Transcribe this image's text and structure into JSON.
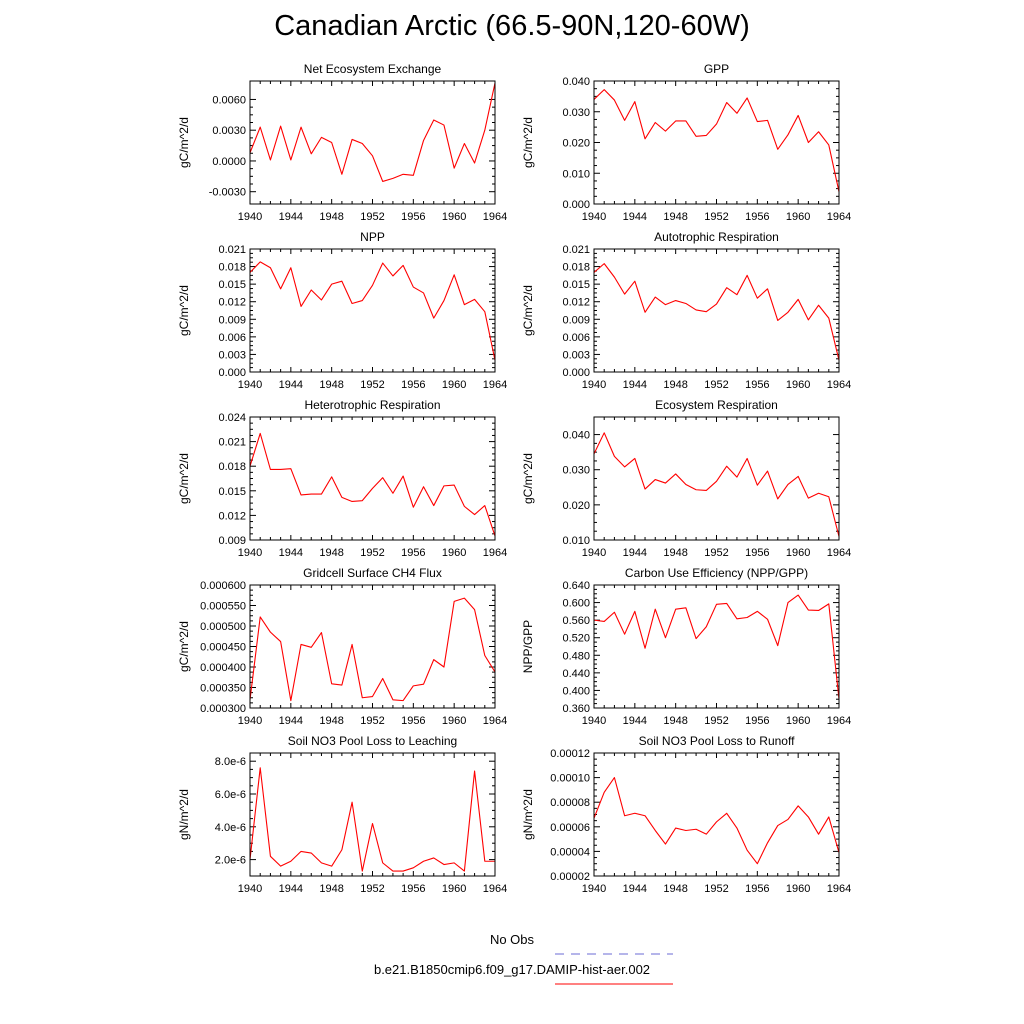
{
  "figure": {
    "title": "Canadian Arctic (66.5-90N,120-60W)",
    "line_color": "#ff0000",
    "obs_color": "#6b6bd6"
  },
  "legend": {
    "obs_label": "No Obs",
    "model_label": "b.e21.B1850cmip6.f09_g17.DAMIP-hist-aer.002"
  },
  "chart_data": [
    {
      "type": "line",
      "title": "Net Ecosystem Exchange",
      "ylabel": "gC/m^2/d",
      "xlim": [
        1940,
        1964
      ],
      "xticks": [
        "1940",
        "1944",
        "1948",
        "1952",
        "1956",
        "1960",
        "1964"
      ],
      "ylim": [
        -0.0042,
        0.0078
      ],
      "yticks": [
        "-0.0030",
        "0.0000",
        "0.0030",
        "0.0060"
      ],
      "x": [
        1940,
        1941,
        1942,
        1943,
        1944,
        1945,
        1946,
        1947,
        1948,
        1949,
        1950,
        1951,
        1952,
        1953,
        1954,
        1955,
        1956,
        1957,
        1958,
        1959,
        1960,
        1961,
        1962,
        1963,
        1964
      ],
      "series": [
        {
          "values": [
            0.0008,
            0.0033,
            0.0001,
            0.0034,
            0.0001,
            0.0033,
            0.0007,
            0.0023,
            0.0018,
            -0.0013,
            0.0021,
            0.0017,
            0.0005,
            -0.002,
            -0.0017,
            -0.0013,
            -0.0014,
            0.002,
            0.004,
            0.0035,
            -0.0007,
            0.0017,
            -0.0002,
            0.003,
            0.0076
          ]
        }
      ]
    },
    {
      "type": "line",
      "title": "GPP",
      "ylabel": "gC/m^2/d",
      "xlim": [
        1940,
        1964
      ],
      "xticks": [
        "1940",
        "1944",
        "1948",
        "1952",
        "1956",
        "1960",
        "1964"
      ],
      "ylim": [
        0.0,
        0.04
      ],
      "yticks": [
        "0.000",
        "0.010",
        "0.020",
        "0.030",
        "0.040"
      ],
      "x": [
        1940,
        1941,
        1942,
        1943,
        1944,
        1945,
        1946,
        1947,
        1948,
        1949,
        1950,
        1951,
        1952,
        1953,
        1954,
        1955,
        1956,
        1957,
        1958,
        1959,
        1960,
        1961,
        1962,
        1963,
        1964
      ],
      "series": [
        {
          "values": [
            0.034,
            0.0372,
            0.0338,
            0.0272,
            0.0333,
            0.0212,
            0.0265,
            0.0237,
            0.027,
            0.027,
            0.022,
            0.0223,
            0.026,
            0.033,
            0.0295,
            0.0345,
            0.0268,
            0.0272,
            0.0178,
            0.0225,
            0.0288,
            0.02,
            0.0235,
            0.0192,
            0.004
          ]
        }
      ]
    },
    {
      "type": "line",
      "title": "NPP",
      "ylabel": "gC/m^2/d",
      "xlim": [
        1940,
        1964
      ],
      "xticks": [
        "1940",
        "1944",
        "1948",
        "1952",
        "1956",
        "1960",
        "1964"
      ],
      "ylim": [
        0.0,
        0.021
      ],
      "yticks": [
        "0.000",
        "0.003",
        "0.006",
        "0.009",
        "0.012",
        "0.015",
        "0.018",
        "0.021"
      ],
      "x": [
        1940,
        1941,
        1942,
        1943,
        1944,
        1945,
        1946,
        1947,
        1948,
        1949,
        1950,
        1951,
        1952,
        1953,
        1954,
        1955,
        1956,
        1957,
        1958,
        1959,
        1960,
        1961,
        1962,
        1963,
        1964
      ],
      "series": [
        {
          "values": [
            0.017,
            0.0188,
            0.0178,
            0.0142,
            0.0178,
            0.0112,
            0.014,
            0.0123,
            0.015,
            0.0155,
            0.0117,
            0.0122,
            0.0148,
            0.0186,
            0.0164,
            0.0182,
            0.0145,
            0.0135,
            0.0092,
            0.0122,
            0.0166,
            0.0115,
            0.0124,
            0.0103,
            0.002
          ]
        }
      ]
    },
    {
      "type": "line",
      "title": "Autotrophic Respiration",
      "ylabel": "gC/m^2/d",
      "xlim": [
        1940,
        1964
      ],
      "xticks": [
        "1940",
        "1944",
        "1948",
        "1952",
        "1956",
        "1960",
        "1964"
      ],
      "ylim": [
        0.0,
        0.021
      ],
      "yticks": [
        "0.000",
        "0.003",
        "0.006",
        "0.009",
        "0.012",
        "0.015",
        "0.018",
        "0.021"
      ],
      "x": [
        1940,
        1941,
        1942,
        1943,
        1944,
        1945,
        1946,
        1947,
        1948,
        1949,
        1950,
        1951,
        1952,
        1953,
        1954,
        1955,
        1956,
        1957,
        1958,
        1959,
        1960,
        1961,
        1962,
        1963,
        1964
      ],
      "series": [
        {
          "values": [
            0.017,
            0.0185,
            0.0162,
            0.0133,
            0.0155,
            0.0102,
            0.0128,
            0.0115,
            0.0122,
            0.0117,
            0.0106,
            0.0103,
            0.0116,
            0.0144,
            0.0132,
            0.0165,
            0.0126,
            0.0142,
            0.0088,
            0.0102,
            0.0124,
            0.0089,
            0.0114,
            0.0092,
            0.002
          ]
        }
      ]
    },
    {
      "type": "line",
      "title": "Heterotrophic Respiration",
      "ylabel": "gC/m^2/d",
      "xlim": [
        1940,
        1964
      ],
      "xticks": [
        "1940",
        "1944",
        "1948",
        "1952",
        "1956",
        "1960",
        "1964"
      ],
      "ylim": [
        0.009,
        0.024
      ],
      "yticks": [
        "0.009",
        "0.012",
        "0.015",
        "0.018",
        "0.021",
        "0.024"
      ],
      "x": [
        1940,
        1941,
        1942,
        1943,
        1944,
        1945,
        1946,
        1947,
        1948,
        1949,
        1950,
        1951,
        1952,
        1953,
        1954,
        1955,
        1956,
        1957,
        1958,
        1959,
        1960,
        1961,
        1962,
        1963,
        1964
      ],
      "series": [
        {
          "values": [
            0.018,
            0.022,
            0.0176,
            0.0176,
            0.0177,
            0.0145,
            0.0146,
            0.0146,
            0.0167,
            0.0142,
            0.0137,
            0.0138,
            0.0153,
            0.0166,
            0.0147,
            0.0168,
            0.013,
            0.0155,
            0.0132,
            0.0156,
            0.0157,
            0.0131,
            0.0121,
            0.0132,
            0.0095
          ]
        }
      ]
    },
    {
      "type": "line",
      "title": "Ecosystem Respiration",
      "ylabel": "gC/m^2/d",
      "xlim": [
        1940,
        1964
      ],
      "xticks": [
        "1940",
        "1944",
        "1948",
        "1952",
        "1956",
        "1960",
        "1964"
      ],
      "ylim": [
        0.01,
        0.045
      ],
      "yticks": [
        "0.010",
        "0.020",
        "0.030",
        "0.040"
      ],
      "x": [
        1940,
        1941,
        1942,
        1943,
        1944,
        1945,
        1946,
        1947,
        1948,
        1949,
        1950,
        1951,
        1952,
        1953,
        1954,
        1955,
        1956,
        1957,
        1958,
        1959,
        1960,
        1961,
        1962,
        1963,
        1964
      ],
      "series": [
        {
          "values": [
            0.0345,
            0.0405,
            0.0338,
            0.0308,
            0.0332,
            0.0245,
            0.0272,
            0.0262,
            0.0288,
            0.0258,
            0.0243,
            0.0241,
            0.0267,
            0.031,
            0.0279,
            0.0332,
            0.0256,
            0.0296,
            0.0217,
            0.0258,
            0.0281,
            0.0219,
            0.0233,
            0.0223,
            0.011
          ]
        }
      ]
    },
    {
      "type": "line",
      "title": "Gridcell Surface CH4 Flux",
      "ylabel": "gC/m^2/d",
      "xlim": [
        1940,
        1964
      ],
      "xticks": [
        "1940",
        "1944",
        "1948",
        "1952",
        "1956",
        "1960",
        "1964"
      ],
      "ylim": [
        0.0003,
        0.0006
      ],
      "yticks": [
        "0.000300",
        "0.000350",
        "0.000400",
        "0.000450",
        "0.000500",
        "0.000550",
        "0.000600"
      ],
      "x": [
        1940,
        1941,
        1942,
        1943,
        1944,
        1945,
        1946,
        1947,
        1948,
        1949,
        1950,
        1951,
        1952,
        1953,
        1954,
        1955,
        1956,
        1957,
        1958,
        1959,
        1960,
        1961,
        1962,
        1963,
        1964
      ],
      "series": [
        {
          "values": [
            0.00032,
            0.000522,
            0.000485,
            0.000462,
            0.000318,
            0.000455,
            0.000448,
            0.000484,
            0.000359,
            0.000356,
            0.000455,
            0.000325,
            0.000328,
            0.000372,
            0.00032,
            0.000318,
            0.000354,
            0.000358,
            0.000418,
            0.0004,
            0.00056,
            0.000568,
            0.00054,
            0.000428,
            0.000388
          ]
        }
      ]
    },
    {
      "type": "line",
      "title": "Carbon Use Efficiency (NPP/GPP)",
      "ylabel": "NPP/GPP",
      "xlim": [
        1940,
        1964
      ],
      "xticks": [
        "1940",
        "1944",
        "1948",
        "1952",
        "1956",
        "1960",
        "1964"
      ],
      "ylim": [
        0.36,
        0.64
      ],
      "yticks": [
        "0.360",
        "0.400",
        "0.440",
        "0.480",
        "0.520",
        "0.560",
        "0.600",
        "0.640"
      ],
      "x": [
        1940,
        1941,
        1942,
        1943,
        1944,
        1945,
        1946,
        1947,
        1948,
        1949,
        1950,
        1951,
        1952,
        1953,
        1954,
        1955,
        1956,
        1957,
        1958,
        1959,
        1960,
        1961,
        1962,
        1963,
        1964
      ],
      "series": [
        {
          "values": [
            0.56,
            0.557,
            0.578,
            0.528,
            0.58,
            0.496,
            0.585,
            0.52,
            0.585,
            0.588,
            0.518,
            0.545,
            0.596,
            0.598,
            0.563,
            0.566,
            0.58,
            0.562,
            0.502,
            0.6,
            0.617,
            0.583,
            0.582,
            0.597,
            0.38
          ]
        }
      ]
    },
    {
      "type": "line",
      "title": "Soil NO3 Pool Loss to Leaching",
      "ylabel": "gN/m^2/d",
      "xlim": [
        1940,
        1964
      ],
      "xticks": [
        "1940",
        "1944",
        "1948",
        "1952",
        "1956",
        "1960",
        "1964"
      ],
      "ylim": [
        1e-06,
        8.5e-06
      ],
      "yticks": [
        "2.0e-6",
        "4.0e-6",
        "6.0e-6",
        "8.0e-6"
      ],
      "x": [
        1940,
        1941,
        1942,
        1943,
        1944,
        1945,
        1946,
        1947,
        1948,
        1949,
        1950,
        1951,
        1952,
        1953,
        1954,
        1955,
        1956,
        1957,
        1958,
        1959,
        1960,
        1961,
        1962,
        1963,
        1964
      ],
      "series": [
        {
          "values": [
            2e-06,
            7.6e-06,
            2.2e-06,
            1.6e-06,
            1.9e-06,
            2.5e-06,
            2.4e-06,
            1.8e-06,
            1.6e-06,
            2.6e-06,
            5.5e-06,
            1.3e-06,
            4.2e-06,
            1.8e-06,
            1.3e-06,
            1.3e-06,
            1.5e-06,
            1.9e-06,
            2.1e-06,
            1.7e-06,
            1.8e-06,
            1.3e-06,
            7.4e-06,
            1.9e-06,
            1.9e-06
          ]
        }
      ]
    },
    {
      "type": "line",
      "title": "Soil NO3 Pool Loss to Runoff",
      "ylabel": "gN/m^2/d",
      "xlim": [
        1940,
        1964
      ],
      "xticks": [
        "1940",
        "1944",
        "1948",
        "1952",
        "1956",
        "1960",
        "1964"
      ],
      "ylim": [
        2e-05,
        0.00012
      ],
      "yticks": [
        "0.00002",
        "0.00004",
        "0.00006",
        "0.00008",
        "0.00010",
        "0.00012"
      ],
      "x": [
        1940,
        1941,
        1942,
        1943,
        1944,
        1945,
        1946,
        1947,
        1948,
        1949,
        1950,
        1951,
        1952,
        1953,
        1954,
        1955,
        1956,
        1957,
        1958,
        1959,
        1960,
        1961,
        1962,
        1963,
        1964
      ],
      "series": [
        {
          "values": [
            6.7e-05,
            8.8e-05,
            0.0001,
            6.9e-05,
            7.1e-05,
            6.9e-05,
            5.7e-05,
            4.6e-05,
            5.9e-05,
            5.7e-05,
            5.8e-05,
            5.4e-05,
            6.4e-05,
            7.1e-05,
            5.9e-05,
            4.1e-05,
            3e-05,
            4.7e-05,
            6.1e-05,
            6.6e-05,
            7.7e-05,
            6.8e-05,
            5.4e-05,
            6.8e-05,
            3.9e-05
          ]
        }
      ]
    }
  ]
}
